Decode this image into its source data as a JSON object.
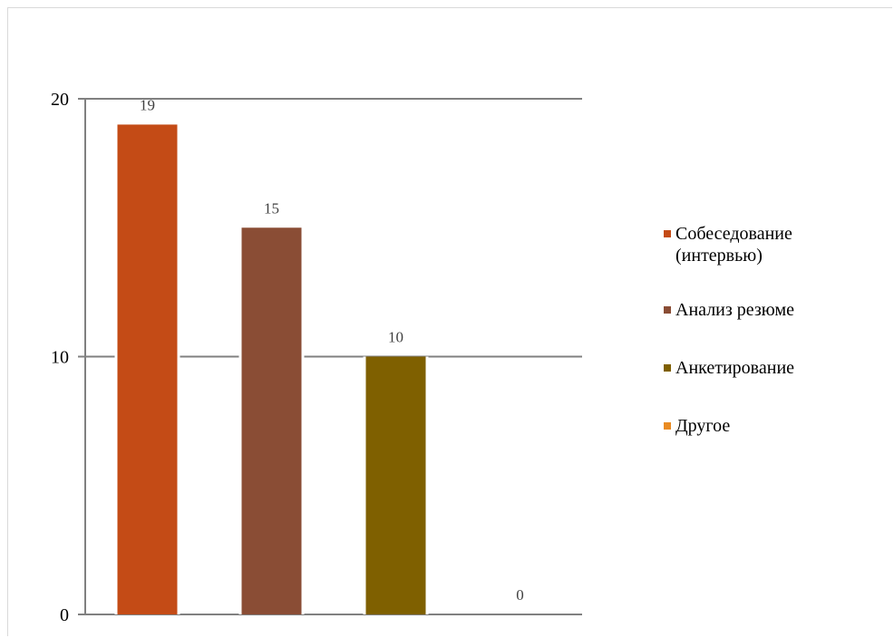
{
  "chart_data": {
    "type": "bar",
    "title": "",
    "xlabel": "",
    "ylabel": "",
    "ylim": [
      0,
      20
    ],
    "yticks": [
      0,
      10,
      20
    ],
    "grid": true,
    "legend_position": "right",
    "categories": [
      "Собеседование (интервью)",
      "Анализ резюме",
      "Анкетирование",
      "Другое"
    ],
    "values": [
      19,
      15,
      10,
      0
    ],
    "data_labels": [
      "19",
      "15",
      "10",
      "0"
    ],
    "colors": [
      "#C44B16",
      "#8A4D35",
      "#7F6000",
      "#E98B22"
    ],
    "legend": [
      {
        "label": "Собеседование (интервью)",
        "color": "#C44B16"
      },
      {
        "label": "Анализ резюме",
        "color": "#8A4D35"
      },
      {
        "label": "Анкетирование",
        "color": "#7F6000"
      },
      {
        "label": "Другое",
        "color": "#E98B22"
      }
    ]
  }
}
